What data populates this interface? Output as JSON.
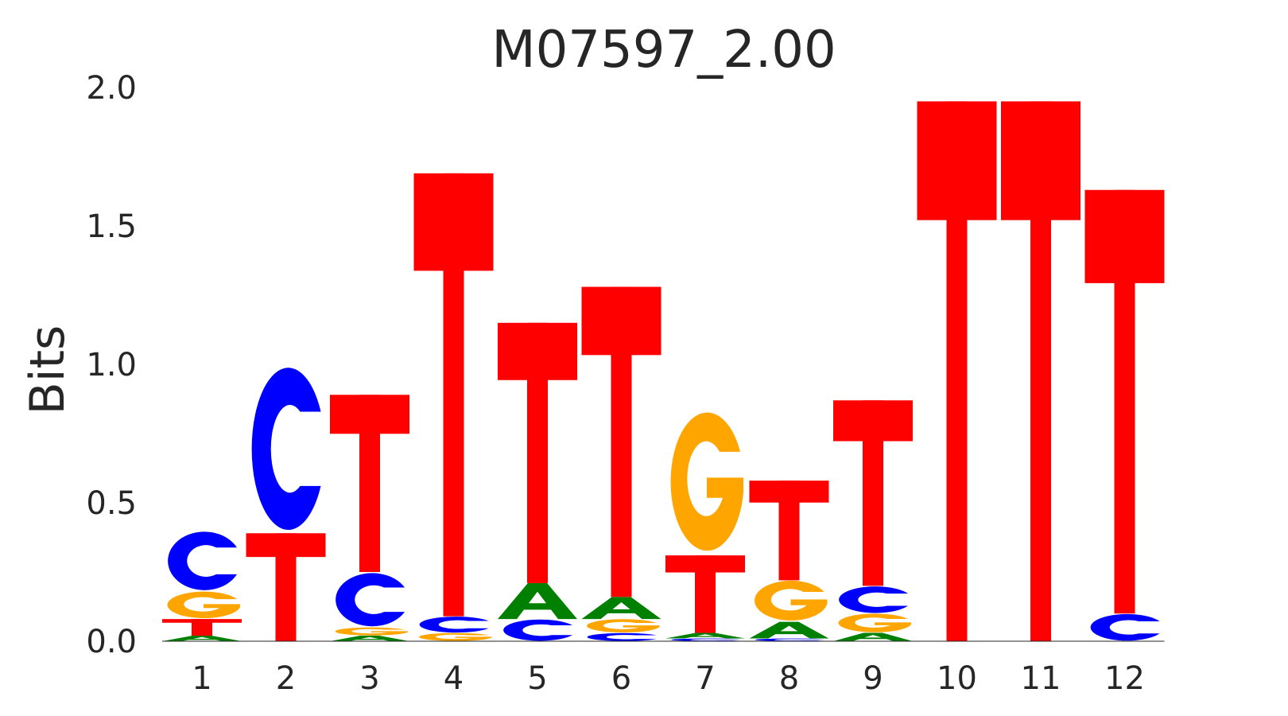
{
  "chart_data": {
    "type": "sequence-logo",
    "title": "M07597_2.00",
    "ylabel": "Bits",
    "xlabel": "",
    "ylim": [
      0,
      2
    ],
    "yticks": [
      "0.0",
      "0.5",
      "1.0",
      "1.5",
      "2.0"
    ],
    "ytick_values": [
      0,
      0.5,
      1.0,
      1.5,
      2.0
    ],
    "grid": false,
    "positions": [
      "1",
      "2",
      "3",
      "4",
      "5",
      "6",
      "7",
      "8",
      "9",
      "10",
      "11",
      "12"
    ],
    "colors": {
      "A": "#008000",
      "C": "#0000ff",
      "G": "#ffa500",
      "T": "#ff0000"
    },
    "stacks": [
      [
        {
          "base": "A",
          "bits": 0.02
        },
        {
          "base": "T",
          "bits": 0.06
        },
        {
          "base": "G",
          "bits": 0.1
        },
        {
          "base": "C",
          "bits": 0.22
        }
      ],
      [
        {
          "base": "T",
          "bits": 0.39
        },
        {
          "base": "C",
          "bits": 0.61
        }
      ],
      [
        {
          "base": "A",
          "bits": 0.02
        },
        {
          "base": "G",
          "bits": 0.03
        },
        {
          "base": "C",
          "bits": 0.2
        },
        {
          "base": "T",
          "bits": 0.64
        }
      ],
      [
        {
          "base": "G",
          "bits": 0.03
        },
        {
          "base": "C",
          "bits": 0.06
        },
        {
          "base": "T",
          "bits": 1.6
        }
      ],
      [
        {
          "base": "C",
          "bits": 0.08
        },
        {
          "base": "A",
          "bits": 0.13
        },
        {
          "base": "T",
          "bits": 0.94
        }
      ],
      [
        {
          "base": "C",
          "bits": 0.03
        },
        {
          "base": "G",
          "bits": 0.05
        },
        {
          "base": "A",
          "bits": 0.08
        },
        {
          "base": "T",
          "bits": 1.12
        }
      ],
      [
        {
          "base": "C",
          "bits": 0.01
        },
        {
          "base": "A",
          "bits": 0.02
        },
        {
          "base": "T",
          "bits": 0.28
        },
        {
          "base": "G",
          "bits": 0.52
        }
      ],
      [
        {
          "base": "C",
          "bits": 0.01
        },
        {
          "base": "A",
          "bits": 0.06
        },
        {
          "base": "G",
          "bits": 0.15
        },
        {
          "base": "T",
          "bits": 0.36
        }
      ],
      [
        {
          "base": "A",
          "bits": 0.03
        },
        {
          "base": "G",
          "bits": 0.07
        },
        {
          "base": "C",
          "bits": 0.1
        },
        {
          "base": "T",
          "bits": 0.67
        }
      ],
      [
        {
          "base": "T",
          "bits": 1.95
        }
      ],
      [
        {
          "base": "T",
          "bits": 1.95
        }
      ],
      [
        {
          "base": "C",
          "bits": 0.1
        },
        {
          "base": "T",
          "bits": 1.53
        }
      ]
    ]
  }
}
